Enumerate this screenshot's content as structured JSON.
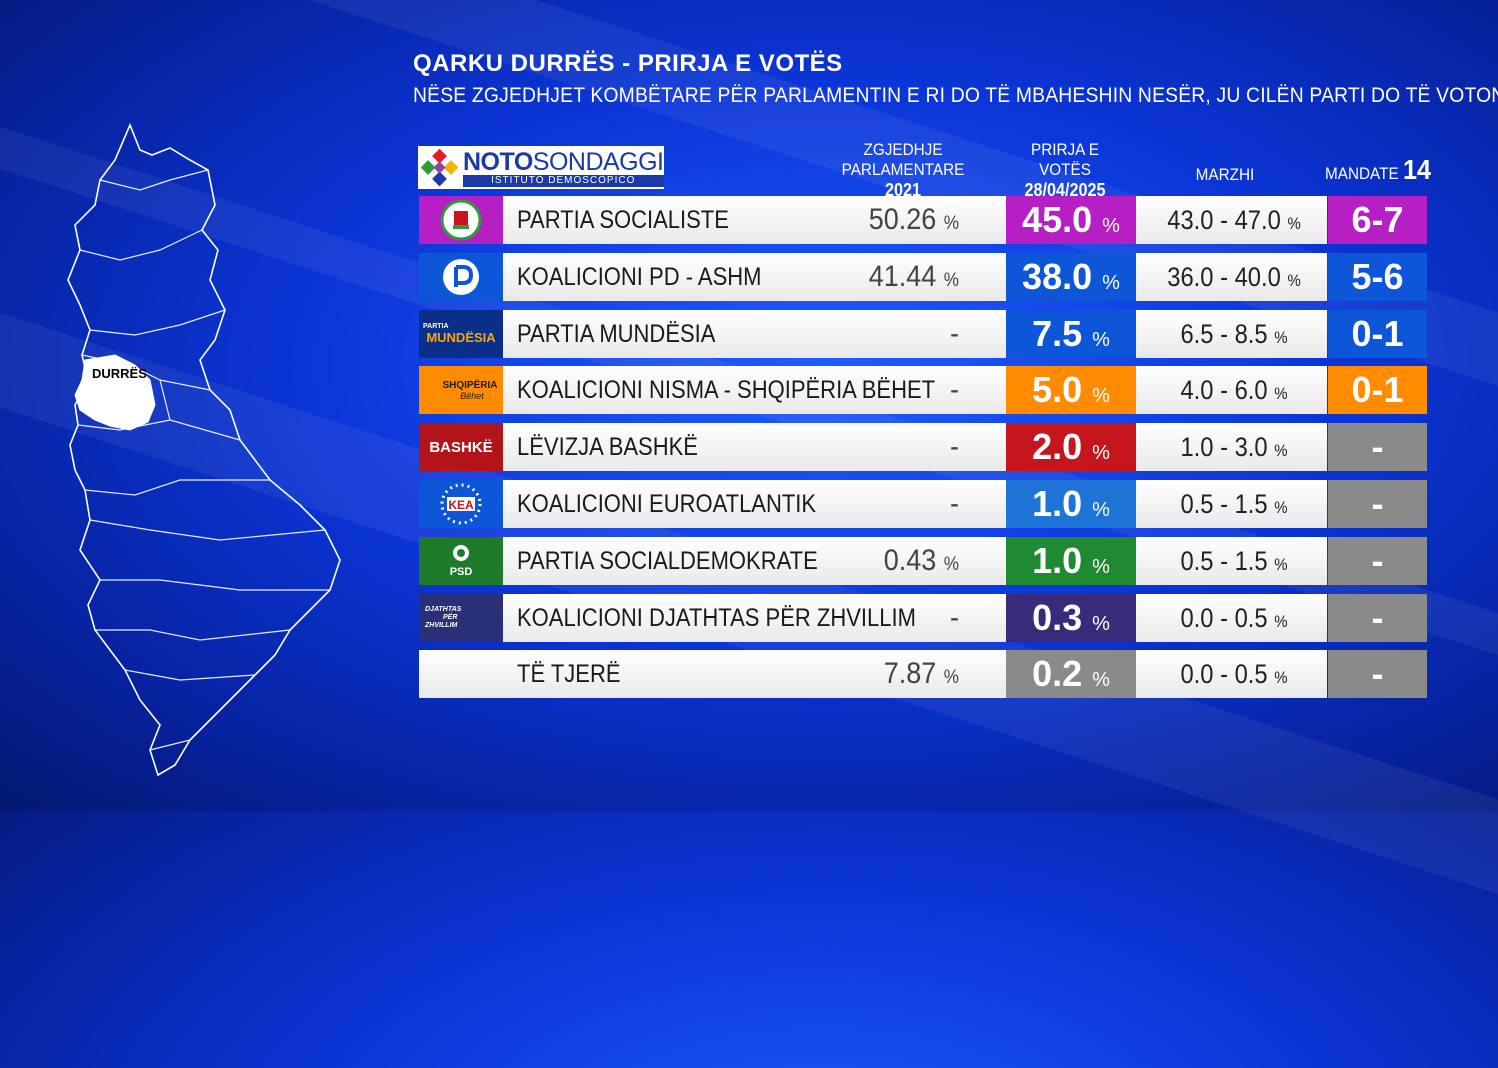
{
  "header": {
    "title": "QARKU DURRËS - PRIRJA E VOTËS",
    "question": "NËSE ZGJEDHJET KOMBËTARE PËR PARLAMENTIN E RI DO TË MBAHESHIN NESËR, JU CILËN PARTI DO TË VOTONIT?"
  },
  "logo": {
    "main_bold": "NOTO",
    "main_light": "SONDAGGI",
    "sub": "ISTITUTO DEMOSCOPICO"
  },
  "map": {
    "label": "DURRËS"
  },
  "columns": {
    "prev_line1": "ZGJEDHJE PARLAMENTARE",
    "prev_line2": "2021",
    "cur_line1": "PRIRJA E VOTËS",
    "cur_line2": "28/04/2025",
    "margin": "MARZHI",
    "seats_label": "MANDATE",
    "seats_total": "14"
  },
  "icons": {
    "bashke": "BASHKË",
    "kea": "KEA",
    "psd": "PSD",
    "mundesia_small": "PARTIA",
    "mundesia": "MUNDËSIA",
    "shqiperia": "SHQIPËRIA",
    "behet": "Bëhet",
    "djathtas1": "DJATHTAS",
    "djathtas2": "PËR",
    "djathtas3": "ZHVILLIM"
  },
  "chart_data": {
    "type": "table",
    "title": "QARKU DURRËS - PRIRJA E VOTËS",
    "rows": [
      {
        "party": "PARTIA SOCIALISTE",
        "prev": "50.26",
        "cur": "45.0",
        "margin": "43.0 - 47.0",
        "seats": "6-7",
        "color": "#b51fc4",
        "seat_color": "#b51fc4",
        "icon": "ps-rose-icon"
      },
      {
        "party": "KOALICIONI   PD - ASHM",
        "prev": "41.44",
        "cur": "38.0",
        "margin": "36.0 - 40.0",
        "seats": "5-6",
        "color": "#0e56d8",
        "seat_color": "#0e56d8",
        "icon": "pd-logo-icon"
      },
      {
        "party": "PARTIA MUNDËSIA",
        "prev": "-",
        "cur": "7.5",
        "margin": "6.5 - 8.5",
        "seats": "0-1",
        "color": "#0e56d8",
        "seat_color": "#0e56d8",
        "icon": "mundesia-logo-icon"
      },
      {
        "party": "KOALICIONI NISMA - SHQIPËRIA BËHET",
        "prev": "-",
        "cur": "5.0",
        "margin": "4.0 - 6.0",
        "seats": "0-1",
        "color": "#ff8c00",
        "seat_color": "#ff8c00",
        "icon": "shqiperia-behet-icon"
      },
      {
        "party": "LËVIZJA BASHKË",
        "prev": "-",
        "cur": "2.0",
        "margin": "1.0 - 3.0",
        "seats": "-",
        "color": "#c4161c",
        "seat_color": "#8a8a8a",
        "icon": "bashke-logo-icon"
      },
      {
        "party": "KOALICIONI EUROATLANTIK",
        "prev": "-",
        "cur": "1.0",
        "margin": "0.5 - 1.5",
        "seats": "-",
        "color": "#1e73d6",
        "seat_color": "#8a8a8a",
        "icon": "kea-logo-icon"
      },
      {
        "party": "PARTIA SOCIALDEMOKRATE",
        "prev": "0.43",
        "cur": "1.0",
        "margin": "0.5 - 1.5",
        "seats": "-",
        "color": "#1f8a32",
        "seat_color": "#8a8a8a",
        "icon": "psd-logo-icon"
      },
      {
        "party": "KOALICIONI DJATHTAS PËR ZHVILLIM",
        "prev": "-",
        "cur": "0.3",
        "margin": "0.0 - 0.5",
        "seats": "-",
        "color": "#3a2a7a",
        "seat_color": "#8a8a8a",
        "icon": "djathtas-logo-icon"
      },
      {
        "party": "TË TJERË",
        "prev": "7.87",
        "cur": "0.2",
        "margin": "0.0 - 0.5",
        "seats": "-",
        "color": "#8a8a8a",
        "seat_color": "#8a8a8a",
        "icon": ""
      }
    ],
    "pct_sign": "%"
  }
}
